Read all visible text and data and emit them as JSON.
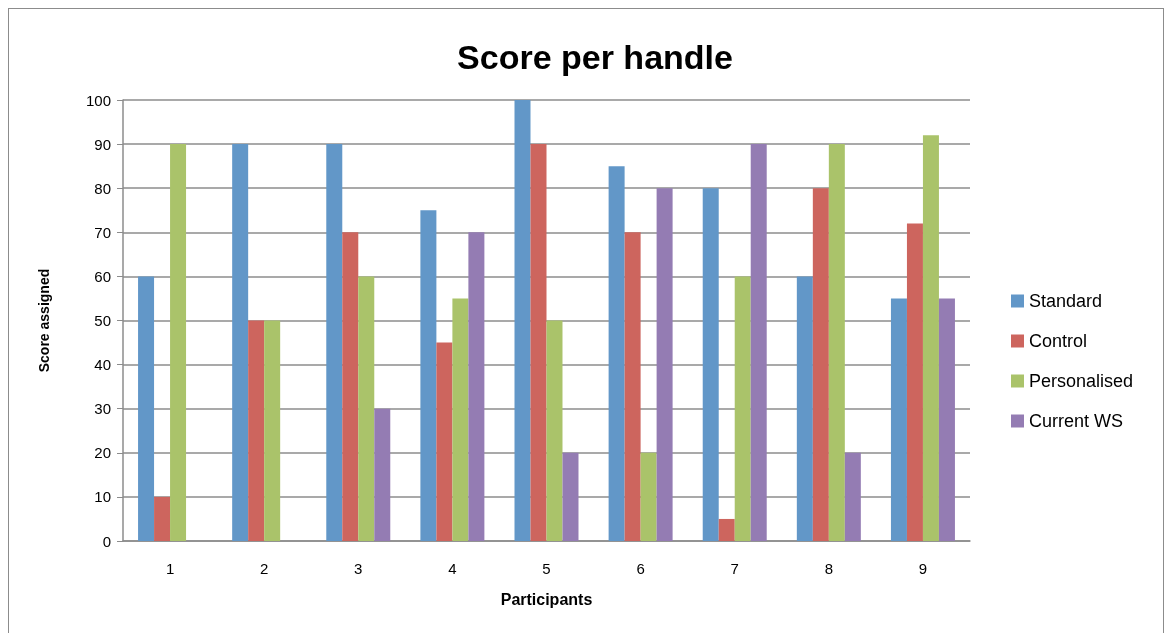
{
  "chart_data": {
    "type": "bar",
    "title": "Score per handle",
    "xlabel": "Participants",
    "ylabel": "Score assigned",
    "categories": [
      "1",
      "2",
      "3",
      "4",
      "5",
      "6",
      "7",
      "8",
      "9"
    ],
    "series": [
      {
        "name": "Standard",
        "color": "#6297c8",
        "values": [
          60,
          90,
          90,
          75,
          100,
          85,
          80,
          60,
          55
        ]
      },
      {
        "name": "Control",
        "color": "#cd655e",
        "values": [
          10,
          50,
          70,
          45,
          90,
          70,
          5,
          80,
          72
        ]
      },
      {
        "name": "Personalised",
        "color": "#aac36a",
        "values": [
          90,
          50,
          60,
          55,
          50,
          20,
          60,
          90,
          92
        ]
      },
      {
        "name": "Current WS",
        "color": "#947cb3",
        "values": [
          null,
          null,
          30,
          70,
          20,
          80,
          90,
          20,
          55
        ]
      }
    ],
    "ylim": [
      0,
      100
    ],
    "yticks": [
      0,
      10,
      20,
      30,
      40,
      50,
      60,
      70,
      80,
      90,
      100
    ],
    "grid": "y",
    "legend": "right"
  }
}
